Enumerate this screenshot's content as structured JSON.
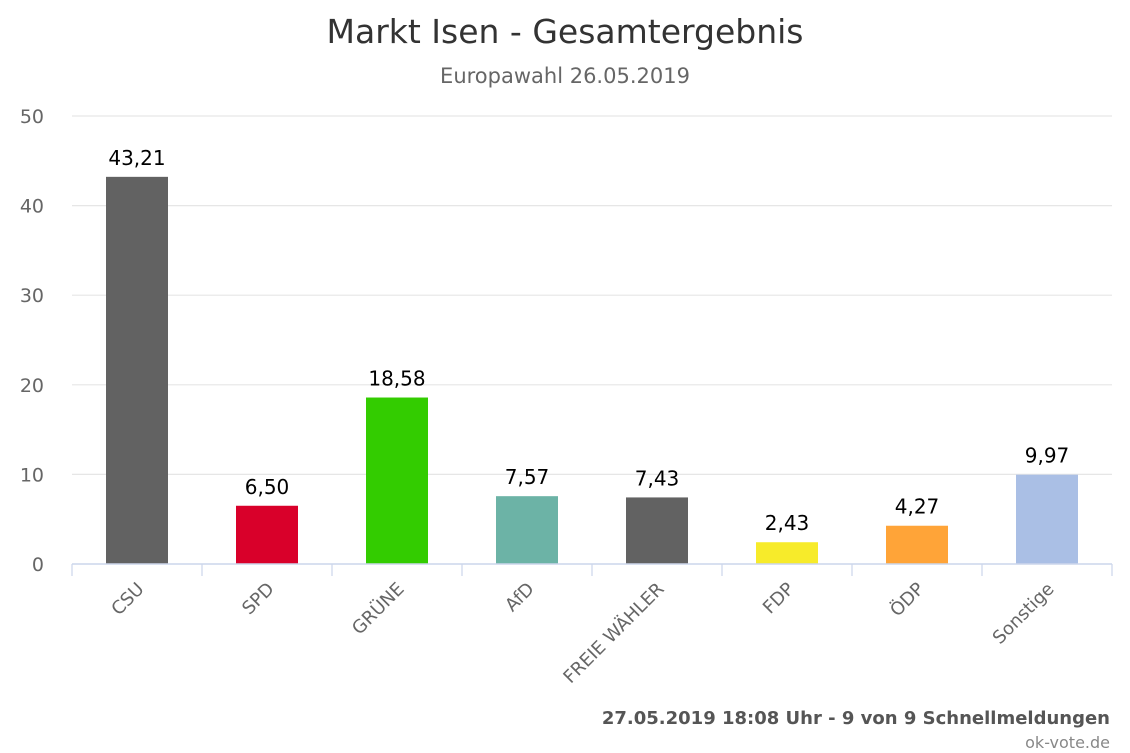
{
  "chart_data": {
    "type": "bar",
    "title": "Markt Isen - Gesamtergebnis",
    "subtitle": "Europawahl 26.05.2019",
    "xlabel": "",
    "ylabel": "",
    "ylim": [
      0,
      50
    ],
    "yticks": [
      "0",
      "10",
      "20",
      "30",
      "40",
      "50"
    ],
    "grid": true,
    "categories": [
      "CSU",
      "SPD",
      "GRÜNE",
      "AfD",
      "FREIE WÄHLER",
      "FDP",
      "ÖDP",
      "Sonstige"
    ],
    "values": [
      43.21,
      6.5,
      18.58,
      7.57,
      7.43,
      2.43,
      4.27,
      9.97
    ],
    "value_labels": [
      "43,21",
      "6,50",
      "18,58",
      "7,57",
      "7,43",
      "2,43",
      "4,27",
      "9,97"
    ],
    "colors": [
      "#626262",
      "#d9002a",
      "#33cc00",
      "#6cb3a6",
      "#626262",
      "#f7eb2a",
      "#ffa438",
      "#aabfe5"
    ]
  },
  "footer": {
    "credit": "27.05.2019 18:08 Uhr - 9 von 9 Schnellmeldungen",
    "source": "ok-vote.de"
  }
}
